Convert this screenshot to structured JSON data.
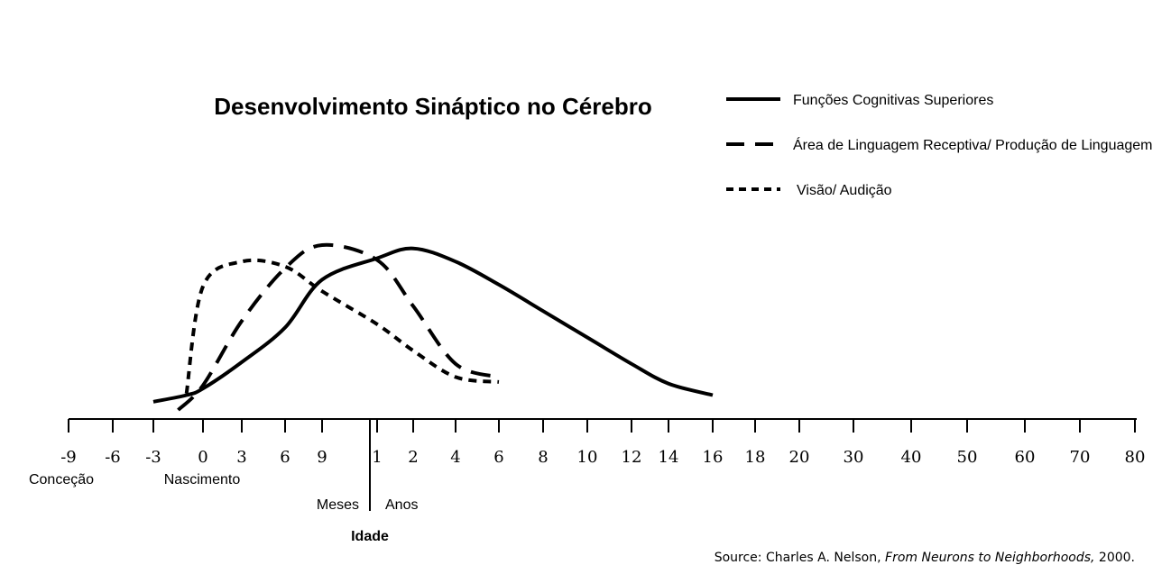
{
  "chart_data": {
    "type": "line",
    "title": "Desenvolvimento Sináptico no Cérebro",
    "xlabel": "Idade",
    "ylabel": "",
    "x_ticks": [
      "-9",
      "-6",
      "-3",
      "0",
      "3",
      "6",
      "9",
      "1",
      "2",
      "4",
      "6",
      "8",
      "10",
      "12",
      "14",
      "16",
      "18",
      "20",
      "30",
      "40",
      "50",
      "60",
      "70",
      "80"
    ],
    "x_annotations": {
      "conception": "Conceção",
      "birth": "Nascimento",
      "months": "Meses",
      "years": "Anos"
    },
    "y_ticks": [],
    "legend_position": "top-right",
    "series": [
      {
        "name": "Funções Cognitivas Superiores",
        "style": "solid",
        "x": [
          -3,
          -1,
          0,
          3,
          6,
          9,
          1,
          2,
          4,
          6,
          8,
          10,
          12,
          14,
          16
        ],
        "x_units": [
          "months",
          "months",
          "months",
          "months",
          "months",
          "months",
          "years",
          "years",
          "years",
          "years",
          "years",
          "years",
          "years",
          "years",
          "years"
        ],
        "y": [
          0.05,
          0.09,
          0.13,
          0.29,
          0.5,
          0.79,
          0.92,
          0.98,
          0.9,
          0.76,
          0.6,
          0.44,
          0.28,
          0.16,
          0.09
        ]
      },
      {
        "name": "Área de Linguagem Receptiva/ Produção de Linguagem",
        "style": "dashed",
        "x": [
          -1.5,
          0,
          3,
          6,
          9,
          1,
          2,
          4,
          6
        ],
        "x_units": [
          "months",
          "months",
          "months",
          "months",
          "months",
          "years",
          "years",
          "years",
          "years"
        ],
        "y": [
          0.0,
          0.15,
          0.54,
          0.86,
          1.0,
          0.91,
          0.63,
          0.28,
          0.2
        ]
      },
      {
        "name": "Visão/ Audição",
        "style": "dotted",
        "x": [
          -1,
          0,
          3,
          6,
          9,
          1,
          2,
          4,
          6
        ],
        "x_units": [
          "months",
          "months",
          "months",
          "months",
          "months",
          "years",
          "years",
          "years",
          "years"
        ],
        "y": [
          0.1,
          0.75,
          0.9,
          0.87,
          0.72,
          0.52,
          0.36,
          0.2,
          0.17
        ]
      }
    ]
  },
  "source": {
    "prefix": "Source: Charles A. Nelson, ",
    "work": "From Neurons to Neighborhoods,",
    "suffix": " 2000."
  }
}
